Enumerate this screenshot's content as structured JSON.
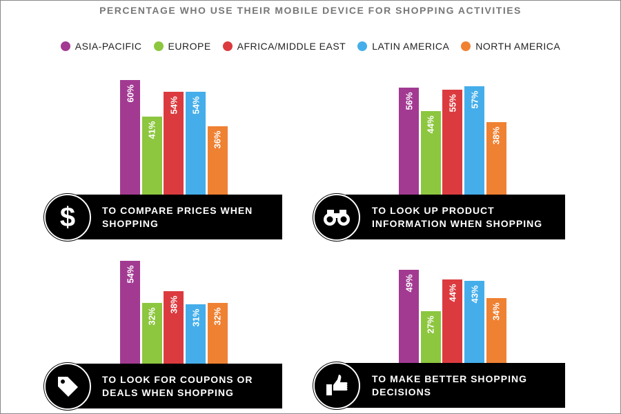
{
  "chart_data": {
    "type": "bar",
    "title": "PERCENTAGE WHO USE THEIR MOBILE DEVICE FOR SHOPPING ACTIVITIES",
    "legend": [
      {
        "name": "ASIA-PACIFIC",
        "color": "#a23a92"
      },
      {
        "name": "EUROPE",
        "color": "#8dc63f"
      },
      {
        "name": "AFRICA/MIDDLE EAST",
        "color": "#db3b3f"
      },
      {
        "name": "LATIN AMERICA",
        "color": "#45aeea"
      },
      {
        "name": "NORTH AMERICA",
        "color": "#ef8133"
      }
    ],
    "legend_position": "top",
    "unit": "%",
    "panels": [
      {
        "label": "TO COMPARE PRICES WHEN SHOPPING",
        "icon": "dollar-icon",
        "values": [
          60,
          41,
          54,
          54,
          36
        ]
      },
      {
        "label": "TO LOOK UP PRODUCT INFORMATION WHEN SHOPPING",
        "icon": "binoculars-icon",
        "values": [
          56,
          44,
          55,
          57,
          38
        ]
      },
      {
        "label": "TO LOOK FOR COUPONS OR DEALS WHEN SHOPPING",
        "icon": "price-tag-icon",
        "values": [
          54,
          32,
          38,
          31,
          32
        ]
      },
      {
        "label": "TO MAKE BETTER SHOPPING DECISIONS",
        "icon": "thumbs-up-icon",
        "values": [
          49,
          27,
          44,
          43,
          34
        ]
      }
    ]
  }
}
